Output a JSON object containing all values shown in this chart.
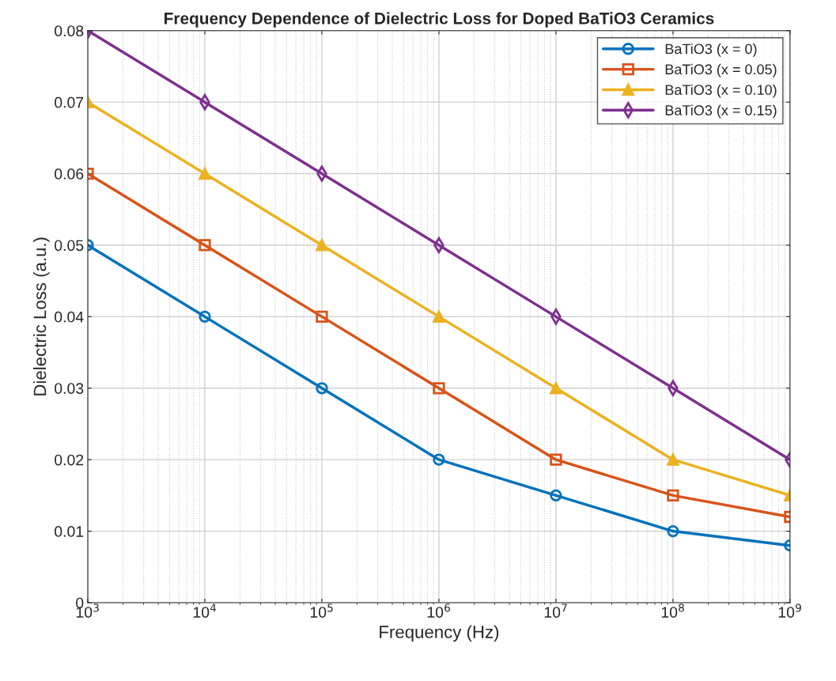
{
  "chart_data": {
    "type": "line",
    "title": "Frequency Dependence of Dielectric Loss for Doped BaTiO3 Ceramics",
    "xlabel": "Frequency (Hz)",
    "ylabel": "Dielectric Loss (a.u.)",
    "x": [
      1000,
      10000,
      100000,
      1000000,
      10000000,
      100000000,
      1000000000
    ],
    "series": [
      {
        "name": "BaTiO3 (x = 0)",
        "color": "#0072bd",
        "marker": "circle",
        "values": [
          0.05,
          0.04,
          0.03,
          0.02,
          0.015,
          0.01,
          0.008
        ]
      },
      {
        "name": "BaTiO3 (x = 0.05)",
        "color": "#d95319",
        "marker": "square",
        "values": [
          0.06,
          0.05,
          0.04,
          0.03,
          0.02,
          0.015,
          0.012
        ]
      },
      {
        "name": "BaTiO3 (x = 0.10)",
        "color": "#edb120",
        "marker": "triangle",
        "values": [
          0.07,
          0.06,
          0.05,
          0.04,
          0.03,
          0.02,
          0.015
        ]
      },
      {
        "name": "BaTiO3 (x = 0.15)",
        "color": "#7e2f8e",
        "marker": "diamond",
        "values": [
          0.08,
          0.07,
          0.06,
          0.05,
          0.04,
          0.03,
          0.02
        ]
      }
    ],
    "log": "x",
    "xlim": [
      1000,
      1000000000
    ],
    "xticks": [
      {
        "value": 1000,
        "label": "10$^{3}$"
      },
      {
        "value": 10000,
        "label": "10$^{4}$"
      },
      {
        "value": 100000,
        "label": "10$^{5}$"
      },
      {
        "value": 1000000,
        "label": "10$^{6}$"
      },
      {
        "value": 10000000,
        "label": "10$^{7}$"
      },
      {
        "value": 100000000,
        "label": "10$^{8}$"
      },
      {
        "value": 1000000000,
        "label": "10$^{9}$"
      }
    ],
    "ylim": [
      0,
      0.08
    ],
    "yticks": [
      0,
      0.01,
      0.02,
      0.03,
      0.04,
      0.05,
      0.06,
      0.07,
      0.08
    ],
    "grid": true,
    "legend": "top right",
    "line_style": "solid"
  }
}
